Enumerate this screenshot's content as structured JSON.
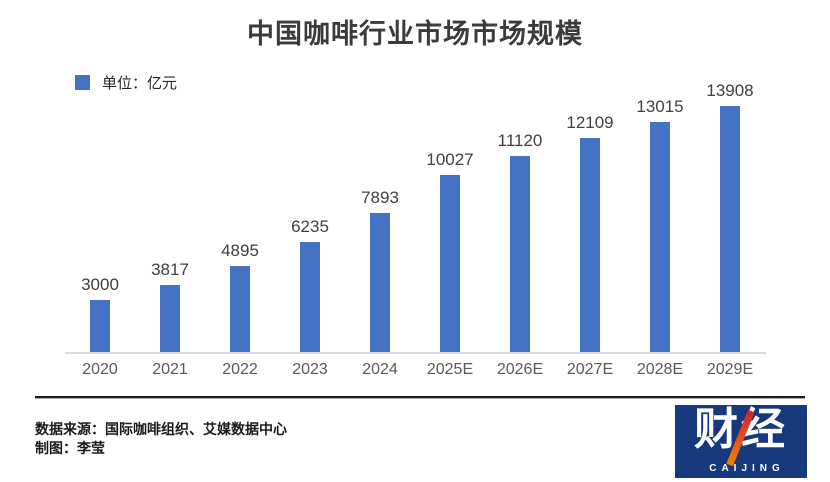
{
  "title": "中国咖啡行业市场市场规模",
  "legend": {
    "label": "单位：亿元",
    "swatch_color": "#4472C4"
  },
  "chart_data": {
    "type": "bar",
    "title": "中国咖啡行业市场市场规模",
    "unit_label": "单位：亿元",
    "categories": [
      "2020",
      "2021",
      "2022",
      "2023",
      "2024",
      "2025E",
      "2026E",
      "2027E",
      "2028E",
      "2029E"
    ],
    "values": [
      3000,
      3817,
      4895,
      6235,
      7893,
      10027,
      11120,
      12109,
      13015,
      13908
    ],
    "bar_color": "#4472C4",
    "axis_line_color": "#DBDBDB",
    "value_label_color": "#404040",
    "tick_label_color": "#595959",
    "ylim": [
      0,
      13908
    ],
    "grid": false,
    "data_labels": true,
    "legend_position": "top-left"
  },
  "footer": {
    "source_line": "数据来源：国际咖啡组织、艾媒数据中心",
    "credit_line": "制图：李莹"
  },
  "logo": {
    "cn": "财经",
    "en": "CAIJING",
    "bg_color": "#15397C",
    "slash_top_color": "#D91E2E",
    "slash_bottom_color": "#F08300"
  }
}
